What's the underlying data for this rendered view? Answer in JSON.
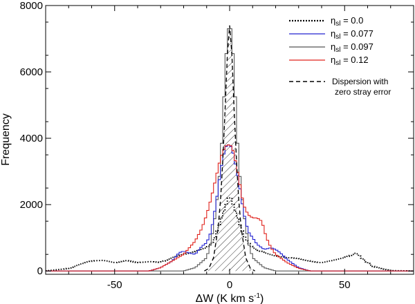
{
  "chart_data": {
    "type": "line",
    "title": "",
    "xlabel_main": "ΔW (K km s",
    "xlabel_sup": "-1",
    "xlabel_close": ")",
    "ylabel": "Frequency",
    "xlim": [
      -80,
      80
    ],
    "ylim": [
      -100,
      8000
    ],
    "x_ticks": [
      -50,
      0,
      50
    ],
    "x_tick_labels": [
      "-50",
      "0",
      "50"
    ],
    "y_ticks": [
      0,
      2000,
      4000,
      6000,
      8000
    ],
    "y_tick_labels": [
      "0",
      "2000",
      "4000",
      "6000",
      "8000"
    ],
    "series": [
      {
        "name": "eta_sl = 0.0",
        "label_symbol": "η",
        "label_sub": "sl",
        "label_value": " = 0.0",
        "color": "#000000",
        "style": "dotted",
        "x": [
          -80,
          -70,
          -65,
          -60,
          -55,
          -50,
          -45,
          -40,
          -35,
          -30,
          -25,
          -20,
          -15,
          -10,
          -7,
          -5,
          -3,
          -1,
          0,
          1,
          3,
          5,
          7,
          10,
          15,
          20,
          25,
          30,
          35,
          40,
          45,
          50,
          53,
          55,
          58,
          62,
          66,
          70,
          80
        ],
        "values": [
          0,
          80,
          200,
          300,
          320,
          250,
          320,
          250,
          280,
          260,
          400,
          500,
          600,
          700,
          900,
          1300,
          1700,
          2100,
          2300,
          2100,
          1700,
          1300,
          950,
          700,
          550,
          450,
          400,
          380,
          300,
          250,
          320,
          400,
          480,
          550,
          350,
          150,
          60,
          10,
          0
        ]
      },
      {
        "name": "eta_sl = 0.077",
        "label_symbol": "η",
        "label_sub": "sl",
        "label_value": " = 0.077",
        "color": "#2020d0",
        "style": "solid",
        "x": [
          -80,
          -35,
          -30,
          -25,
          -22,
          -20,
          -18,
          -15,
          -12,
          -10,
          -8,
          -6,
          -4,
          -2,
          -1,
          0,
          1,
          2,
          4,
          6,
          8,
          10,
          12,
          15,
          18,
          20,
          22,
          25,
          28,
          30,
          35,
          80
        ],
        "values": [
          0,
          0,
          100,
          300,
          550,
          600,
          550,
          500,
          750,
          850,
          1200,
          2000,
          3000,
          3700,
          3800,
          3800,
          3700,
          3400,
          2700,
          1800,
          1200,
          1000,
          800,
          650,
          700,
          650,
          550,
          350,
          200,
          100,
          0,
          0
        ]
      },
      {
        "name": "eta_sl = 0.097",
        "label_symbol": "η",
        "label_sub": "sl",
        "label_value": " = 0.097",
        "color": "#555555",
        "style": "solid",
        "x": [
          -80,
          -20,
          -15,
          -10,
          -8,
          -6,
          -4,
          -3,
          -2,
          -1,
          0,
          1,
          2,
          3,
          4,
          6,
          8,
          10,
          15,
          20,
          80
        ],
        "values": [
          0,
          0,
          100,
          400,
          900,
          1800,
          3200,
          4500,
          6000,
          7100,
          7500,
          7100,
          6000,
          4500,
          3200,
          1800,
          900,
          400,
          100,
          0,
          0
        ]
      },
      {
        "name": "eta_sl = 0.12",
        "label_symbol": "η",
        "label_sub": "sl",
        "label_value": " = 0.12",
        "color": "#e0201a",
        "style": "solid",
        "x": [
          -80,
          -35,
          -30,
          -25,
          -20,
          -15,
          -12,
          -10,
          -8,
          -6,
          -4,
          -2,
          -1,
          0,
          1,
          2,
          4,
          6,
          8,
          10,
          12,
          14,
          16,
          18,
          20,
          25,
          30,
          35,
          80
        ],
        "values": [
          0,
          0,
          100,
          300,
          500,
          900,
          1300,
          1700,
          2200,
          2800,
          3400,
          3750,
          3800,
          3800,
          3750,
          3500,
          2800,
          2000,
          1700,
          1600,
          1600,
          1500,
          1000,
          700,
          500,
          250,
          80,
          0,
          0
        ]
      },
      {
        "name": "Dispersion with zero stray error",
        "color": "#000000",
        "style": "dashed",
        "x": [
          -11,
          -9,
          -7,
          -5,
          -4,
          -3,
          -2,
          -1,
          0,
          1,
          2,
          3,
          4,
          5,
          7,
          9,
          11
        ],
        "values": [
          0,
          80,
          400,
          1300,
          2100,
          3300,
          4800,
          6500,
          7400,
          6500,
          4800,
          3300,
          2100,
          1300,
          400,
          80,
          0
        ]
      }
    ],
    "legend_note_line1": "Dispersion with",
    "legend_note_line2": "zero stray error",
    "legend_position": "top-right"
  }
}
